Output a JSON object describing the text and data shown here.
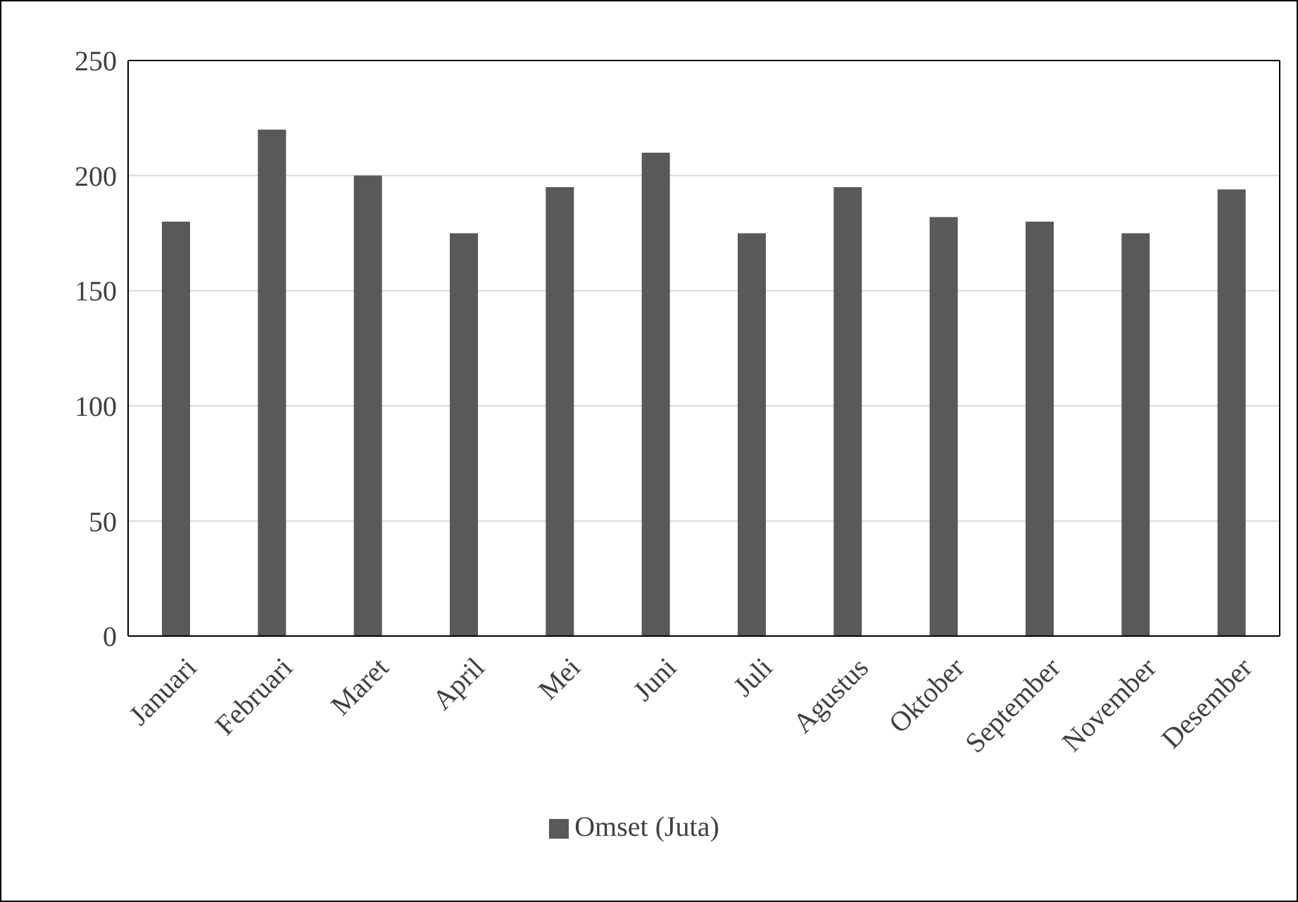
{
  "chart_data": {
    "type": "bar",
    "categories": [
      "Januari",
      "Februari",
      "Maret",
      "April",
      "Mei",
      "Juni",
      "Juli",
      "Agustus",
      "Oktober",
      "September",
      "November",
      "Desember"
    ],
    "series": [
      {
        "name": "Omset (Juta)",
        "color": "#595959",
        "values": [
          180,
          220,
          200,
          175,
          195,
          210,
          175,
          195,
          182,
          180,
          175,
          194
        ]
      }
    ],
    "ylim": [
      0,
      250
    ],
    "yticks": [
      0,
      50,
      100,
      150,
      200,
      250
    ],
    "grid": "y",
    "legend": "bottom"
  }
}
